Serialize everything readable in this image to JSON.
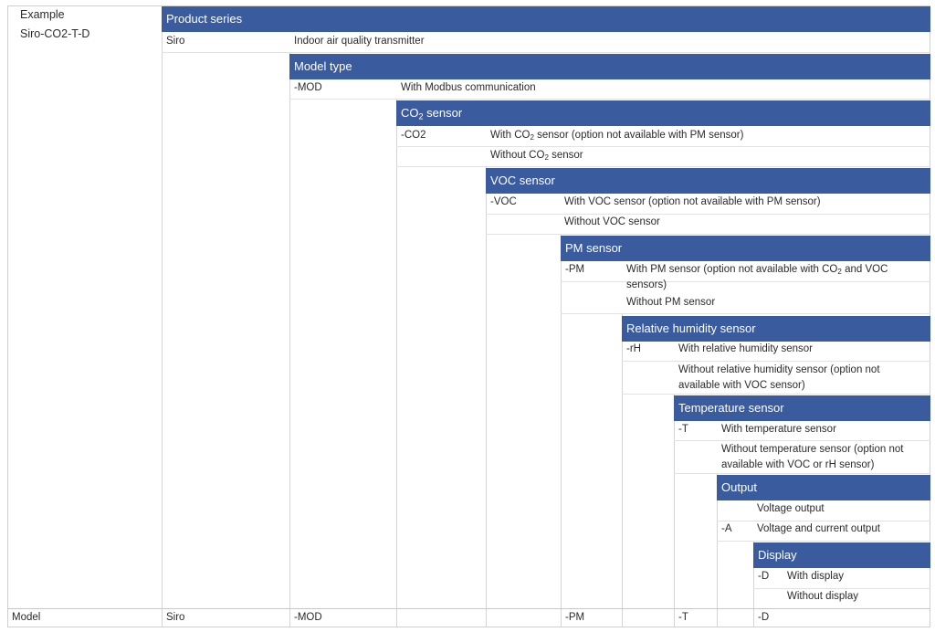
{
  "example": {
    "label": "Example",
    "code": "Siro-CO2-T-D"
  },
  "sections": [
    {
      "header": "Product series",
      "options": [
        {
          "code": "Siro",
          "desc": "Indoor air quality transmitter"
        }
      ]
    },
    {
      "header": "Model type",
      "options": [
        {
          "code": "-MOD",
          "desc": "With Modbus communication"
        }
      ]
    },
    {
      "header_pre": "CO",
      "header_sub": "2",
      "header_post": " sensor",
      "options": [
        {
          "code": "-CO2",
          "desc_pre": "With CO",
          "desc_sub": "2",
          "desc_post": " sensor (option not available with PM sensor)"
        },
        {
          "code": "",
          "desc_pre": "Without CO",
          "desc_sub": "2",
          "desc_post": " sensor"
        }
      ]
    },
    {
      "header": "VOC sensor",
      "options": [
        {
          "code": "-VOC",
          "desc": "With VOC sensor (option not available with PM sensor)"
        },
        {
          "code": "",
          "desc": "Without VOC sensor"
        }
      ]
    },
    {
      "header": "PM sensor",
      "options": [
        {
          "code": "-PM",
          "desc_pre": "With PM sensor (option not available with CO",
          "desc_sub": "2",
          "desc_post": " and VOC sensors)"
        },
        {
          "code": "",
          "desc": "Without PM sensor"
        }
      ]
    },
    {
      "header": "Relative humidity sensor",
      "options": [
        {
          "code": "-rH",
          "desc": "With relative humidity sensor"
        },
        {
          "code": "",
          "desc": "Without relative humidity sensor (option not available with VOC sensor)"
        }
      ]
    },
    {
      "header": "Temperature sensor",
      "options": [
        {
          "code": "-T",
          "desc": "With temperature sensor"
        },
        {
          "code": "",
          "desc": "Without temperature sensor (option not available with VOC or rH sensor)"
        }
      ]
    },
    {
      "header": "Output",
      "options": [
        {
          "code": "",
          "desc": "Voltage output"
        },
        {
          "code": "-A",
          "desc": "Voltage and current output"
        }
      ]
    },
    {
      "header": "Display",
      "options": [
        {
          "code": "-D",
          "desc": "With display"
        },
        {
          "code": "",
          "desc": "Without display"
        }
      ]
    }
  ],
  "model_row": {
    "label": "Model",
    "values": [
      "Siro",
      "-MOD",
      "",
      "",
      "-PM",
      "",
      "-T",
      "",
      "-D"
    ]
  }
}
